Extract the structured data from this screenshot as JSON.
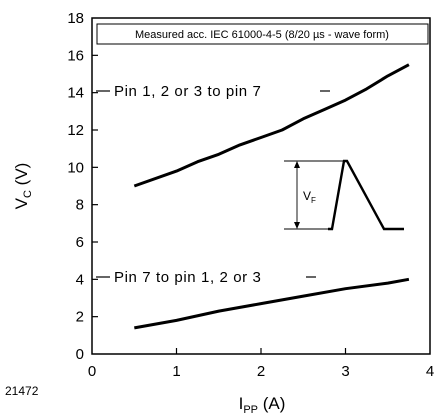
{
  "chart_data": {
    "type": "line",
    "xlabel": {
      "main": "I",
      "sub": "PP",
      "unit": "(A)"
    },
    "ylabel": {
      "main": "V",
      "sub": "C",
      "unit": "(V)"
    },
    "xlim": [
      0,
      4
    ],
    "ylim": [
      0,
      18
    ],
    "x_ticks": [
      "0",
      "1",
      "2",
      "3",
      "4"
    ],
    "y_ticks": [
      "0",
      "2",
      "4",
      "6",
      "8",
      "10",
      "12",
      "14",
      "16",
      "18"
    ],
    "grid": false,
    "caption": "Measured acc. IEC 61000-4-5 (8/20 µs - wave form)",
    "figure_number": "21472",
    "series": [
      {
        "name": "Pin 1, 2 or 3 to  pin 7",
        "x": [
          0.5,
          1.0,
          1.25,
          1.5,
          1.75,
          2.0,
          2.25,
          2.5,
          2.75,
          3.0,
          3.25,
          3.5,
          3.75
        ],
        "y": [
          9.0,
          9.8,
          10.3,
          10.7,
          11.2,
          11.6,
          12.0,
          12.6,
          13.1,
          13.6,
          14.2,
          14.9,
          15.5
        ]
      },
      {
        "name": "Pin 7 to pin 1, 2 or 3",
        "x": [
          0.5,
          1.0,
          1.5,
          2.0,
          2.5,
          3.0,
          3.5,
          3.75
        ],
        "y": [
          1.4,
          1.8,
          2.3,
          2.7,
          3.1,
          3.5,
          3.8,
          4.0
        ]
      }
    ],
    "inset": {
      "label_main": "V",
      "label_sub": "F"
    }
  }
}
